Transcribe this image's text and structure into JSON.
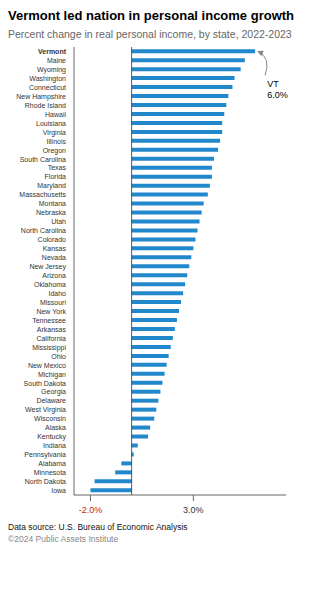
{
  "chart_data": {
    "type": "bar",
    "orientation": "horizontal",
    "title": "Vermont led nation in personal income growth",
    "subtitle": "Percent change in real personal income, by state, 2022-2023",
    "categories": [
      "Vermont",
      "Maine",
      "Wyoming",
      "Washington",
      "Connecticut",
      "New Hampshire",
      "Rhode Island",
      "Hawaii",
      "Louisiana",
      "Virginia",
      "Illinois",
      "Oregon",
      "South Carolina",
      "Texas",
      "Florida",
      "Maryland",
      "Massachusetts",
      "Montana",
      "Nebraska",
      "Utah",
      "North Carolina",
      "Colorado",
      "Kansas",
      "Nevada",
      "New Jersey",
      "Arizona",
      "Oklahoma",
      "Idaho",
      "Missouri",
      "New York",
      "Tennessee",
      "Arkansas",
      "California",
      "Mississippi",
      "Ohio",
      "New Mexico",
      "Michigan",
      "South Dakota",
      "Georgia",
      "Delaware",
      "West Virginia",
      "Wisconsin",
      "Alaska",
      "Kentucky",
      "Indiana",
      "Pennsylvania",
      "Alabama",
      "Minnesota",
      "North Dakota",
      "Iowa"
    ],
    "values": [
      6.0,
      5.5,
      5.3,
      5.0,
      4.9,
      4.7,
      4.6,
      4.5,
      4.4,
      4.4,
      4.3,
      4.2,
      4.0,
      3.9,
      3.9,
      3.8,
      3.7,
      3.5,
      3.4,
      3.3,
      3.2,
      3.1,
      3.0,
      2.9,
      2.8,
      2.7,
      2.6,
      2.5,
      2.4,
      2.3,
      2.2,
      2.1,
      2.0,
      1.9,
      1.8,
      1.7,
      1.6,
      1.5,
      1.4,
      1.3,
      1.2,
      1.1,
      0.9,
      0.8,
      0.3,
      0.1,
      -0.5,
      -0.8,
      -1.8,
      -2.0
    ],
    "color": "#2288cc",
    "xlim": [
      -2.8,
      7.5
    ],
    "xticks": [
      {
        "value": -2.0,
        "label": "-2.0%"
      },
      {
        "value": 3.0,
        "label": "3.0%"
      }
    ],
    "grid": false,
    "annotations": [
      {
        "text": "VT\n6.0%",
        "category": "Vermont",
        "value": 6.0
      }
    ],
    "footer": [
      "Data source: U.S. Bureau of Economic Analysis",
      "©2024 Public Assets Institute"
    ]
  }
}
